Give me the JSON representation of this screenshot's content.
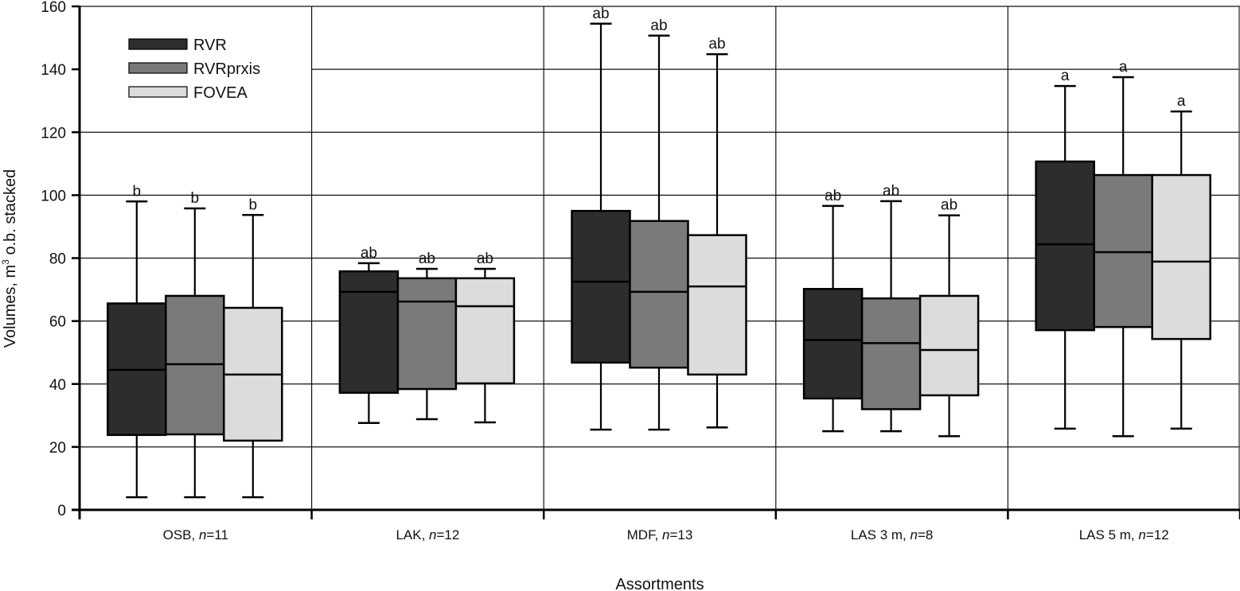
{
  "chart_data": {
    "type": "boxplot",
    "title": "",
    "xlabel": "Assortments",
    "ylabel": "Volumes, m³ o.b. stacked",
    "ylabel_parts": {
      "pre": "Volumes, m",
      "sup": "3",
      "post": " o.b. stacked"
    },
    "ylim": [
      0,
      160
    ],
    "yticks": [
      0,
      20,
      40,
      60,
      80,
      100,
      120,
      140,
      160
    ],
    "grid": true,
    "legend": {
      "placement": "top-left",
      "entries": [
        {
          "name": "RVR",
          "color": "#2d2d2d"
        },
        {
          "name": "RVRprxis",
          "color": "#7a7a7a"
        },
        {
          "name": "FOVEA",
          "color": "#dcdcdc"
        }
      ]
    },
    "categories": [
      {
        "name": "OSB",
        "n": "11"
      },
      {
        "name": "LAK",
        "n": "12"
      },
      {
        "name": "MDF",
        "n": "13"
      },
      {
        "name": "LAS 3 m",
        "n": "8"
      },
      {
        "name": "LAS 5 m",
        "n": "12"
      }
    ],
    "series": [
      {
        "name": "RVR",
        "color": "#2d2d2d",
        "boxes": [
          {
            "min": 4.0,
            "q1": 23.8,
            "median": 44.5,
            "q3": 65.6,
            "max": 98.0,
            "sig": "b"
          },
          {
            "min": 27.6,
            "q1": 37.2,
            "median": 69.3,
            "q3": 75.8,
            "max": 78.4,
            "sig": "ab"
          },
          {
            "min": 25.5,
            "q1": 46.8,
            "median": 72.5,
            "q3": 95.0,
            "max": 154.5,
            "sig": "ab"
          },
          {
            "min": 25.0,
            "q1": 35.4,
            "median": 54.0,
            "q3": 70.2,
            "max": 96.6,
            "sig": "ab"
          },
          {
            "min": 25.8,
            "q1": 57.1,
            "median": 84.4,
            "q3": 110.7,
            "max": 134.7,
            "sig": "a"
          }
        ]
      },
      {
        "name": "RVRprxis",
        "color": "#7a7a7a",
        "boxes": [
          {
            "min": 4.0,
            "q1": 24.0,
            "median": 46.3,
            "q3": 68.0,
            "max": 95.8,
            "sig": "b"
          },
          {
            "min": 28.8,
            "q1": 38.4,
            "median": 66.2,
            "q3": 73.6,
            "max": 76.6,
            "sig": "ab"
          },
          {
            "min": 25.5,
            "q1": 45.2,
            "median": 69.3,
            "q3": 91.8,
            "max": 150.7,
            "sig": "ab"
          },
          {
            "min": 25.0,
            "q1": 32.0,
            "median": 53.0,
            "q3": 67.2,
            "max": 98.1,
            "sig": "ab"
          },
          {
            "min": 23.4,
            "q1": 58.1,
            "median": 81.9,
            "q3": 106.4,
            "max": 137.5,
            "sig": "a"
          }
        ]
      },
      {
        "name": "FOVEA",
        "color": "#dcdcdc",
        "boxes": [
          {
            "min": 4.0,
            "q1": 22.0,
            "median": 43.0,
            "q3": 64.2,
            "max": 93.7,
            "sig": "b"
          },
          {
            "min": 27.8,
            "q1": 40.2,
            "median": 64.7,
            "q3": 73.6,
            "max": 76.6,
            "sig": "ab"
          },
          {
            "min": 26.2,
            "q1": 43.0,
            "median": 71.0,
            "q3": 87.3,
            "max": 144.8,
            "sig": "ab"
          },
          {
            "min": 23.4,
            "q1": 36.4,
            "median": 50.8,
            "q3": 68.0,
            "max": 93.6,
            "sig": "ab"
          },
          {
            "min": 25.8,
            "q1": 54.3,
            "median": 78.9,
            "q3": 106.4,
            "max": 126.6,
            "sig": "a"
          }
        ]
      }
    ]
  }
}
